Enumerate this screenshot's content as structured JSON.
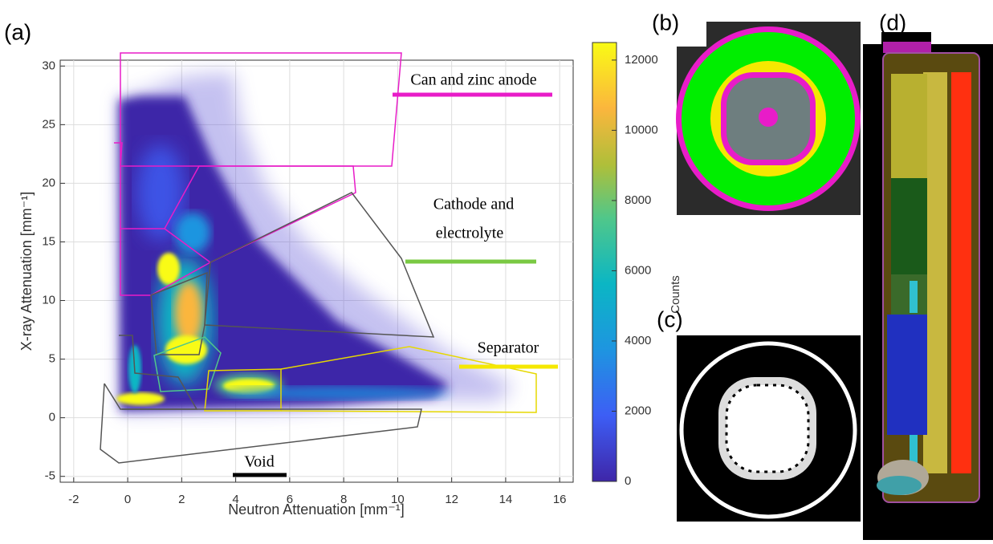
{
  "chart_data": {
    "type": "density",
    "xlabel": "Neutron Attenuation [mm⁻¹]",
    "ylabel": "X-ray Attenuation [mm⁻¹]",
    "xlim": [
      -2.5,
      16.5
    ],
    "xticks": [
      -2,
      0,
      2,
      4,
      6,
      8,
      10,
      12,
      14,
      16
    ],
    "ylim": [
      -5.5,
      30.5
    ],
    "yticks": [
      -5,
      0,
      5,
      10,
      15,
      20,
      25,
      30
    ],
    "grid": true,
    "colorbar": {
      "label": "Counts",
      "lim": [
        0,
        12500
      ],
      "ticks": [
        0,
        2000,
        4000,
        6000,
        8000,
        10000,
        12000
      ]
    },
    "annotations": [
      {
        "text": "Can and zinc anode",
        "color": "#e81cc8"
      },
      {
        "text": "Cathode and",
        "color": null
      },
      {
        "text": "electrolyte",
        "color": "#7ac943"
      },
      {
        "text": "Separator",
        "color": "#f5e800"
      },
      {
        "text": "Void",
        "color": "#000000"
      }
    ],
    "panel_labels": [
      "(a)",
      "(b)",
      "(c)",
      "(d)"
    ]
  }
}
